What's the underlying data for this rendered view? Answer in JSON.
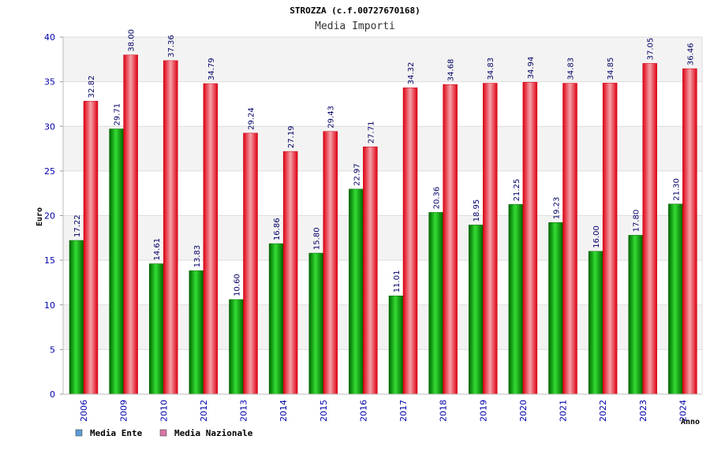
{
  "chart_data": {
    "type": "bar",
    "title": "STROZZA (c.f.00727670168)",
    "subtitle": "Media Importi",
    "xlabel": "Anno",
    "ylabel": "Euro",
    "ylim": [
      0,
      40
    ],
    "yticks": [
      "0",
      "5",
      "10",
      "15",
      "20",
      "25",
      "30",
      "35",
      "40"
    ],
    "grid": true,
    "legend_position": "bottom-left",
    "categories": [
      "2006",
      "2009",
      "2010",
      "2012",
      "2013",
      "2014",
      "2015",
      "2016",
      "2017",
      "2018",
      "2019",
      "2020",
      "2021",
      "2022",
      "2023",
      "2024"
    ],
    "series": [
      {
        "name": "Media Ente",
        "color": "#00b000",
        "legend_color": "#5b9bd5",
        "values": [
          17.22,
          29.71,
          14.61,
          13.83,
          10.6,
          16.86,
          15.8,
          22.97,
          11.01,
          20.36,
          18.95,
          21.25,
          19.23,
          16.0,
          17.8,
          21.3
        ],
        "labels": [
          "17.22",
          "29.71",
          "14.61",
          "13.83",
          "10.60",
          "16.86",
          "15.80",
          "22.97",
          "11.01",
          "20.36",
          "18.95",
          "21.25",
          "19.23",
          "16.00",
          "17.80",
          "21.30"
        ]
      },
      {
        "name": "Media Nazionale",
        "color": "#ee1122",
        "legend_color": "#d878a8",
        "values": [
          32.82,
          38.0,
          37.36,
          34.79,
          29.24,
          27.19,
          29.43,
          27.71,
          34.32,
          34.68,
          34.83,
          34.94,
          34.83,
          34.85,
          37.05,
          36.46
        ],
        "labels": [
          "32.82",
          "38.00",
          "37.36",
          "34.79",
          "29.24",
          "27.19",
          "29.43",
          "27.71",
          "34.32",
          "34.68",
          "34.83",
          "34.94",
          "34.83",
          "34.85",
          "37.05",
          "36.46"
        ]
      }
    ]
  }
}
